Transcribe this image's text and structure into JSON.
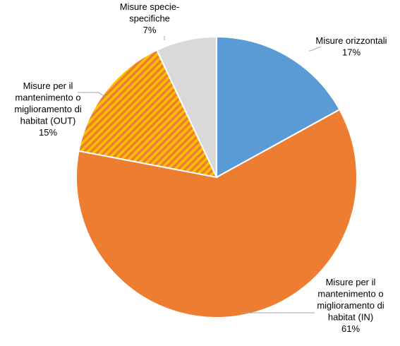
{
  "chart_data": {
    "type": "pie",
    "title": "",
    "start_angle_deg": 0,
    "direction": "clockwise",
    "slices": [
      {
        "name": "Misure orizzontali",
        "value": 17,
        "label_lines": [
          "Misure orizzontali",
          "17%"
        ],
        "color": "#5b9bd5",
        "pattern": "solid"
      },
      {
        "name": "Misure per il mantenimento o miglioramento di habitat (IN)",
        "value": 61,
        "label_lines": [
          "Misure per il",
          "mantenimento o",
          "miglioramento di",
          "habitat (IN)",
          "61%"
        ],
        "color": "#ed7d31",
        "pattern": "solid"
      },
      {
        "name": "Misure per il mantenimento o miglioramento di habitat (OUT)",
        "value": 15,
        "label_lines": [
          "Misure per il",
          "mantenimento o",
          "miglioramento di",
          "habitat (OUT)",
          "15%"
        ],
        "color": "#ed7d31",
        "pattern_color": "#ffc000",
        "pattern": "diagonal-stripes"
      },
      {
        "name": "Misure specie-specifiche",
        "value": 7,
        "label_lines": [
          "Misure specie-",
          "specifiche",
          "7%"
        ],
        "color": "#d9d9d9",
        "pattern": "solid"
      }
    ],
    "leader_line_color": "#a6a6a6",
    "slice_border_color": "#ffffff"
  }
}
